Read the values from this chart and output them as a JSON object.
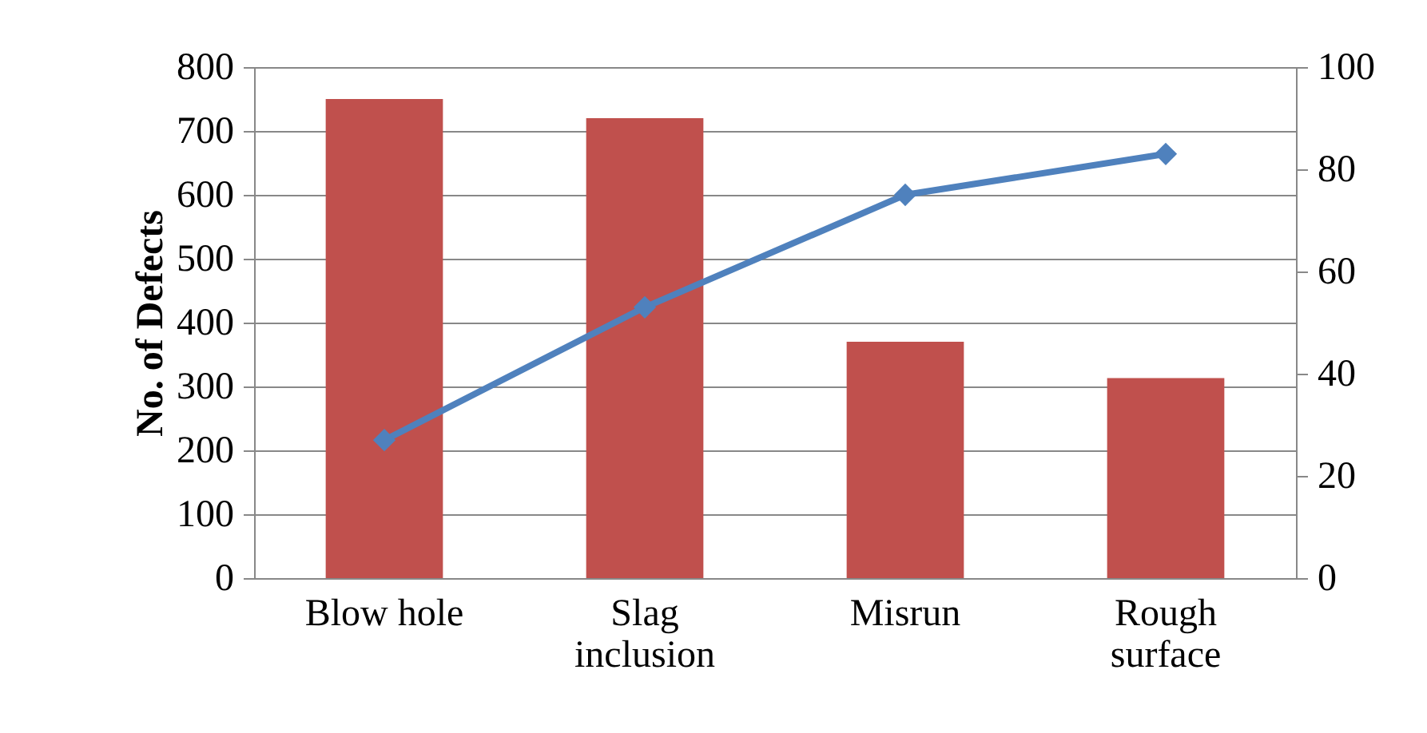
{
  "chart_data": {
    "type": "bar",
    "ylabel": "No. of Defects",
    "categories": [
      "Blow hole",
      "Slag inclusion",
      "Misrun",
      "Rough surface"
    ],
    "series": [
      {
        "color": "#c0504d",
        "values": [
          750,
          720,
          370,
          313
        ]
      },
      {
        "type": "line",
        "axis": "y2",
        "color": "#4f81bd",
        "values": [
          27,
          53,
          75,
          83
        ],
        "marker": "diamond"
      }
    ],
    "ylim": [
      0,
      800
    ],
    "yticks": [
      0,
      100,
      200,
      300,
      400,
      500,
      600,
      700,
      800
    ],
    "y2lim": [
      0,
      100
    ],
    "y2ticks": [
      0,
      20,
      40,
      60,
      80,
      100
    ],
    "grid": "y"
  }
}
